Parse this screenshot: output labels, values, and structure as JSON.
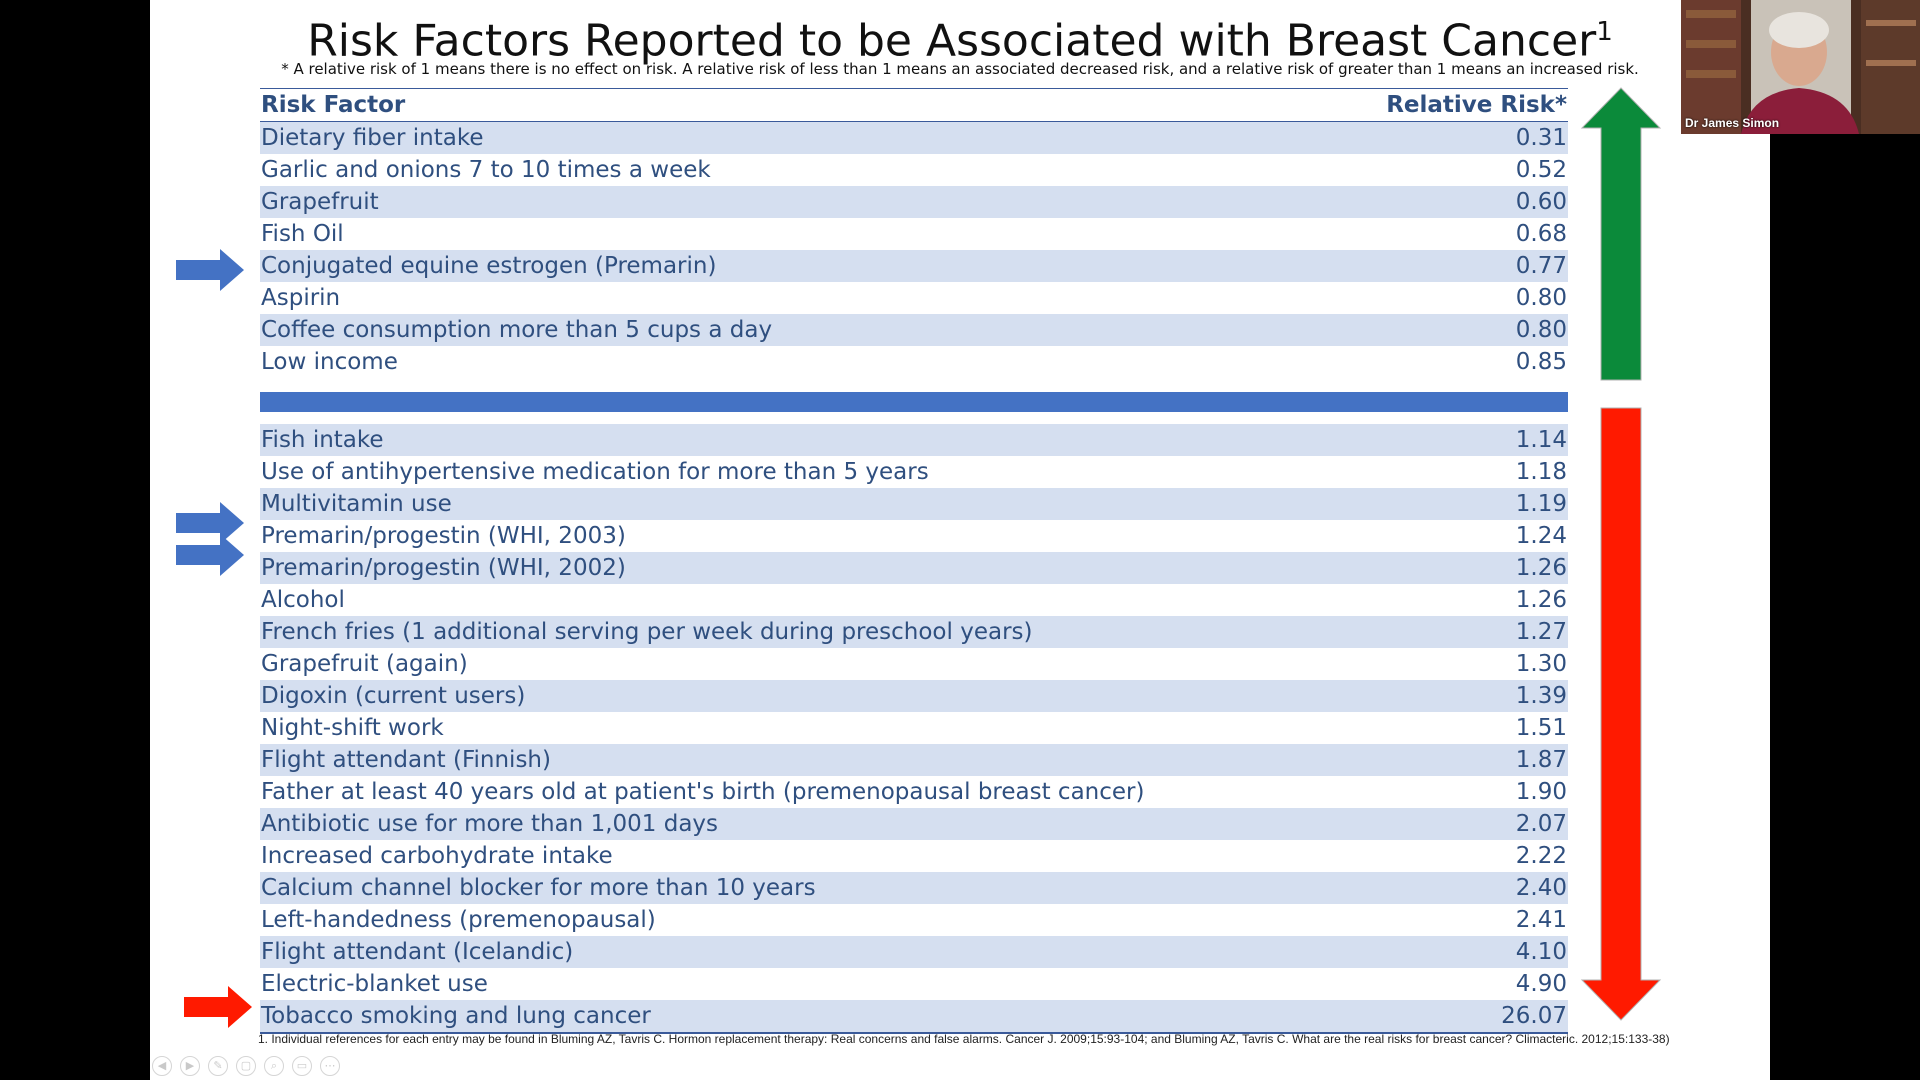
{
  "slide": {
    "title": "Risk Factors Reported to be Associated with Breast Cancer",
    "title_sup": "1",
    "subtitle": "* A relative risk of 1 means there is no effect on risk. A relative risk of less than 1 means an associated decreased risk, and a relative risk of greater than 1 means an increased risk.",
    "header": {
      "factor": "Risk Factor",
      "risk": "Relative Risk*"
    },
    "decreased": [
      {
        "factor": "Dietary fiber intake",
        "risk": "0.31"
      },
      {
        "factor": "Garlic and onions 7 to 10 times a week",
        "risk": "0.52"
      },
      {
        "factor": "Grapefruit",
        "risk": "0.60"
      },
      {
        "factor": "Fish Oil",
        "risk": "0.68"
      },
      {
        "factor": "Conjugated equine estrogen (Premarin)",
        "risk": "0.77"
      },
      {
        "factor": "Aspirin",
        "risk": "0.80"
      },
      {
        "factor": "Coffee consumption more than 5 cups a day",
        "risk": "0.80"
      },
      {
        "factor": "Low income",
        "risk": "0.85"
      }
    ],
    "increased": [
      {
        "factor": "Fish intake",
        "risk": "1.14"
      },
      {
        "factor": "Use of antihypertensive medication for more than 5 years",
        "risk": "1.18"
      },
      {
        "factor": "Multivitamin use",
        "risk": "1.19"
      },
      {
        "factor": "Premarin/progestin (WHI, 2003)",
        "risk": "1.24"
      },
      {
        "factor": "Premarin/progestin (WHI, 2002)",
        "risk": "1.26"
      },
      {
        "factor": "Alcohol",
        "risk": "1.26"
      },
      {
        "factor": "French fries (1 additional serving per week during preschool years)",
        "risk": "1.27"
      },
      {
        "factor": "Grapefruit (again)",
        "risk": "1.30"
      },
      {
        "factor": "Digoxin (current users)",
        "risk": "1.39"
      },
      {
        "factor": "Night-shift work",
        "risk": "1.51"
      },
      {
        "factor": "Flight attendant (Finnish)",
        "risk": "1.87"
      },
      {
        "factor": "Father at least 40 years old at patient's birth (premenopausal breast cancer)",
        "risk": "1.90"
      },
      {
        "factor": "Antibiotic use for more than 1,001 days",
        "risk": "2.07"
      },
      {
        "factor": "Increased carbohydrate intake",
        "risk": "2.22"
      },
      {
        "factor": "Calcium channel blocker for more than 10 years",
        "risk": "2.40"
      },
      {
        "factor": "Left-handedness (premenopausal)",
        "risk": "2.41"
      },
      {
        "factor": "Flight attendant (Icelandic)",
        "risk": "4.10"
      },
      {
        "factor": "Electric-blanket use",
        "risk": "4.90"
      },
      {
        "factor": "Tobacco smoking and lung cancer",
        "risk": "26.07"
      }
    ],
    "footnote": "1. Individual references for each entry may be found in Bluming AZ, Tavris C. Hormon replacement therapy: Real concerns and false alarms. Cancer J. 2009;15:93-104; and Bluming AZ, Tavris C. What are the real risks for breast cancer? Climacteric. 2012;15:133-38)"
  },
  "webcam": {
    "name": "Dr James Simon"
  },
  "colors": {
    "row_shade": "#d5dff0",
    "text": "#2f4f7f",
    "divider": "#4472c4",
    "green": "#0b8a3a",
    "red": "#ff1a00",
    "blue_arrow": "#4472c4"
  }
}
